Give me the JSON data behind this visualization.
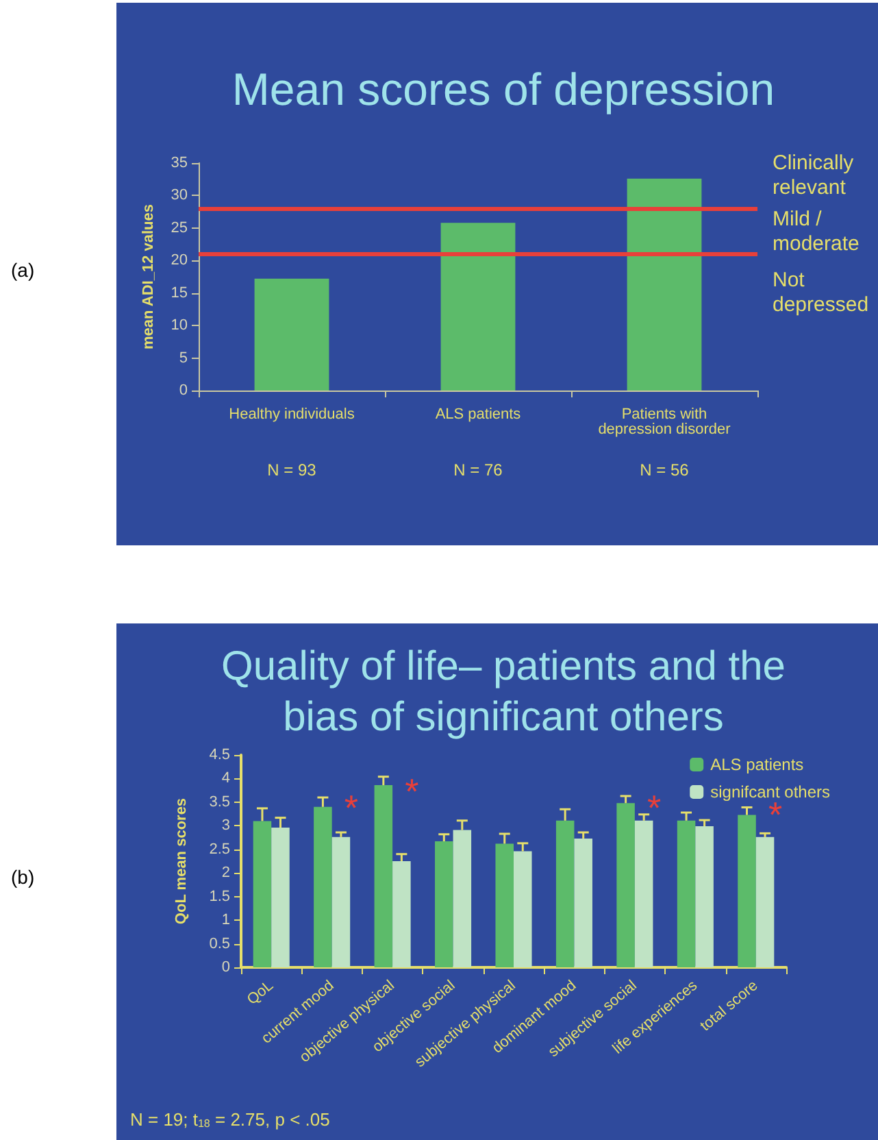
{
  "chart_data": [
    {
      "type": "bar",
      "title": "Mean scores of depression",
      "ylabel": "mean ADI_12 values",
      "categories": [
        "Healthy individuals",
        "ALS patients",
        "Patients with\ndepression disorder"
      ],
      "values": [
        17.2,
        25.8,
        32.6
      ],
      "color": "#5cbb6a",
      "ylim": [
        0,
        35
      ],
      "yticks": [
        0,
        5,
        10,
        15,
        20,
        25,
        30,
        35
      ],
      "grid": false,
      "ref_lines": [
        {
          "axis": "y",
          "value": 28,
          "color": "#e8403a"
        },
        {
          "axis": "y",
          "value": 21,
          "color": "#e8403a"
        }
      ],
      "annotations": [
        "(a)",
        "Clinically\nrelevant",
        "Mild /\nmoderate",
        "Not\ndepressed",
        "N = 93",
        "N = 76",
        "N = 56"
      ]
    },
    {
      "type": "bar",
      "title": "Quality of life– patients and the\nbias of significant others",
      "ylabel": "QoL mean scores",
      "categories": [
        "QoL",
        "current mood",
        "objective physical",
        "objective social",
        "subjective physical",
        "dominant mood",
        "subjective social",
        "life experiences",
        "total score"
      ],
      "series": [
        {
          "name": "ALS patients",
          "color": "#5cbb6a",
          "values": [
            3.1,
            3.4,
            3.86,
            2.67,
            2.62,
            3.11,
            3.48,
            3.11,
            3.23
          ],
          "errors": [
            [
              3.1,
              3.37
            ],
            [
              3.4,
              3.6
            ],
            [
              3.86,
              4.04
            ],
            [
              2.67,
              2.82
            ],
            [
              2.62,
              2.83
            ],
            [
              3.11,
              3.35
            ],
            [
              3.48,
              3.63
            ],
            [
              3.11,
              3.28
            ],
            [
              3.23,
              3.39
            ]
          ]
        },
        {
          "name": "signifcant others",
          "color": "#bfe3c4",
          "values": [
            2.96,
            2.76,
            2.25,
            2.91,
            2.46,
            2.73,
            3.11,
            2.99,
            2.76
          ],
          "errors": [
            [
              2.96,
              3.17
            ],
            [
              2.76,
              2.86
            ],
            [
              2.25,
              2.4
            ],
            [
              2.91,
              3.11
            ],
            [
              2.46,
              2.63
            ],
            [
              2.73,
              2.86
            ],
            [
              3.11,
              3.24
            ],
            [
              2.99,
              3.12
            ],
            [
              2.76,
              2.84
            ]
          ]
        }
      ],
      "ylim": [
        0,
        4.5
      ],
      "yticks": [
        0,
        0.5,
        1,
        1.5,
        2,
        2.5,
        3,
        3.5,
        4,
        4.5
      ],
      "grid": false,
      "legend": "top right",
      "annotations": [
        "(b)",
        "N = 19; t$_{18}$ = 2.75, p < .05",
        {
          "text": "*",
          "x": "current mood",
          "y": 3.5
        },
        {
          "text": "*",
          "x": "objective physical",
          "y": 3.85
        },
        {
          "text": "*",
          "x": "subjective social",
          "y": 3.5
        },
        {
          "text": "*",
          "x": "total score",
          "y": 3.35
        }
      ]
    }
  ]
}
